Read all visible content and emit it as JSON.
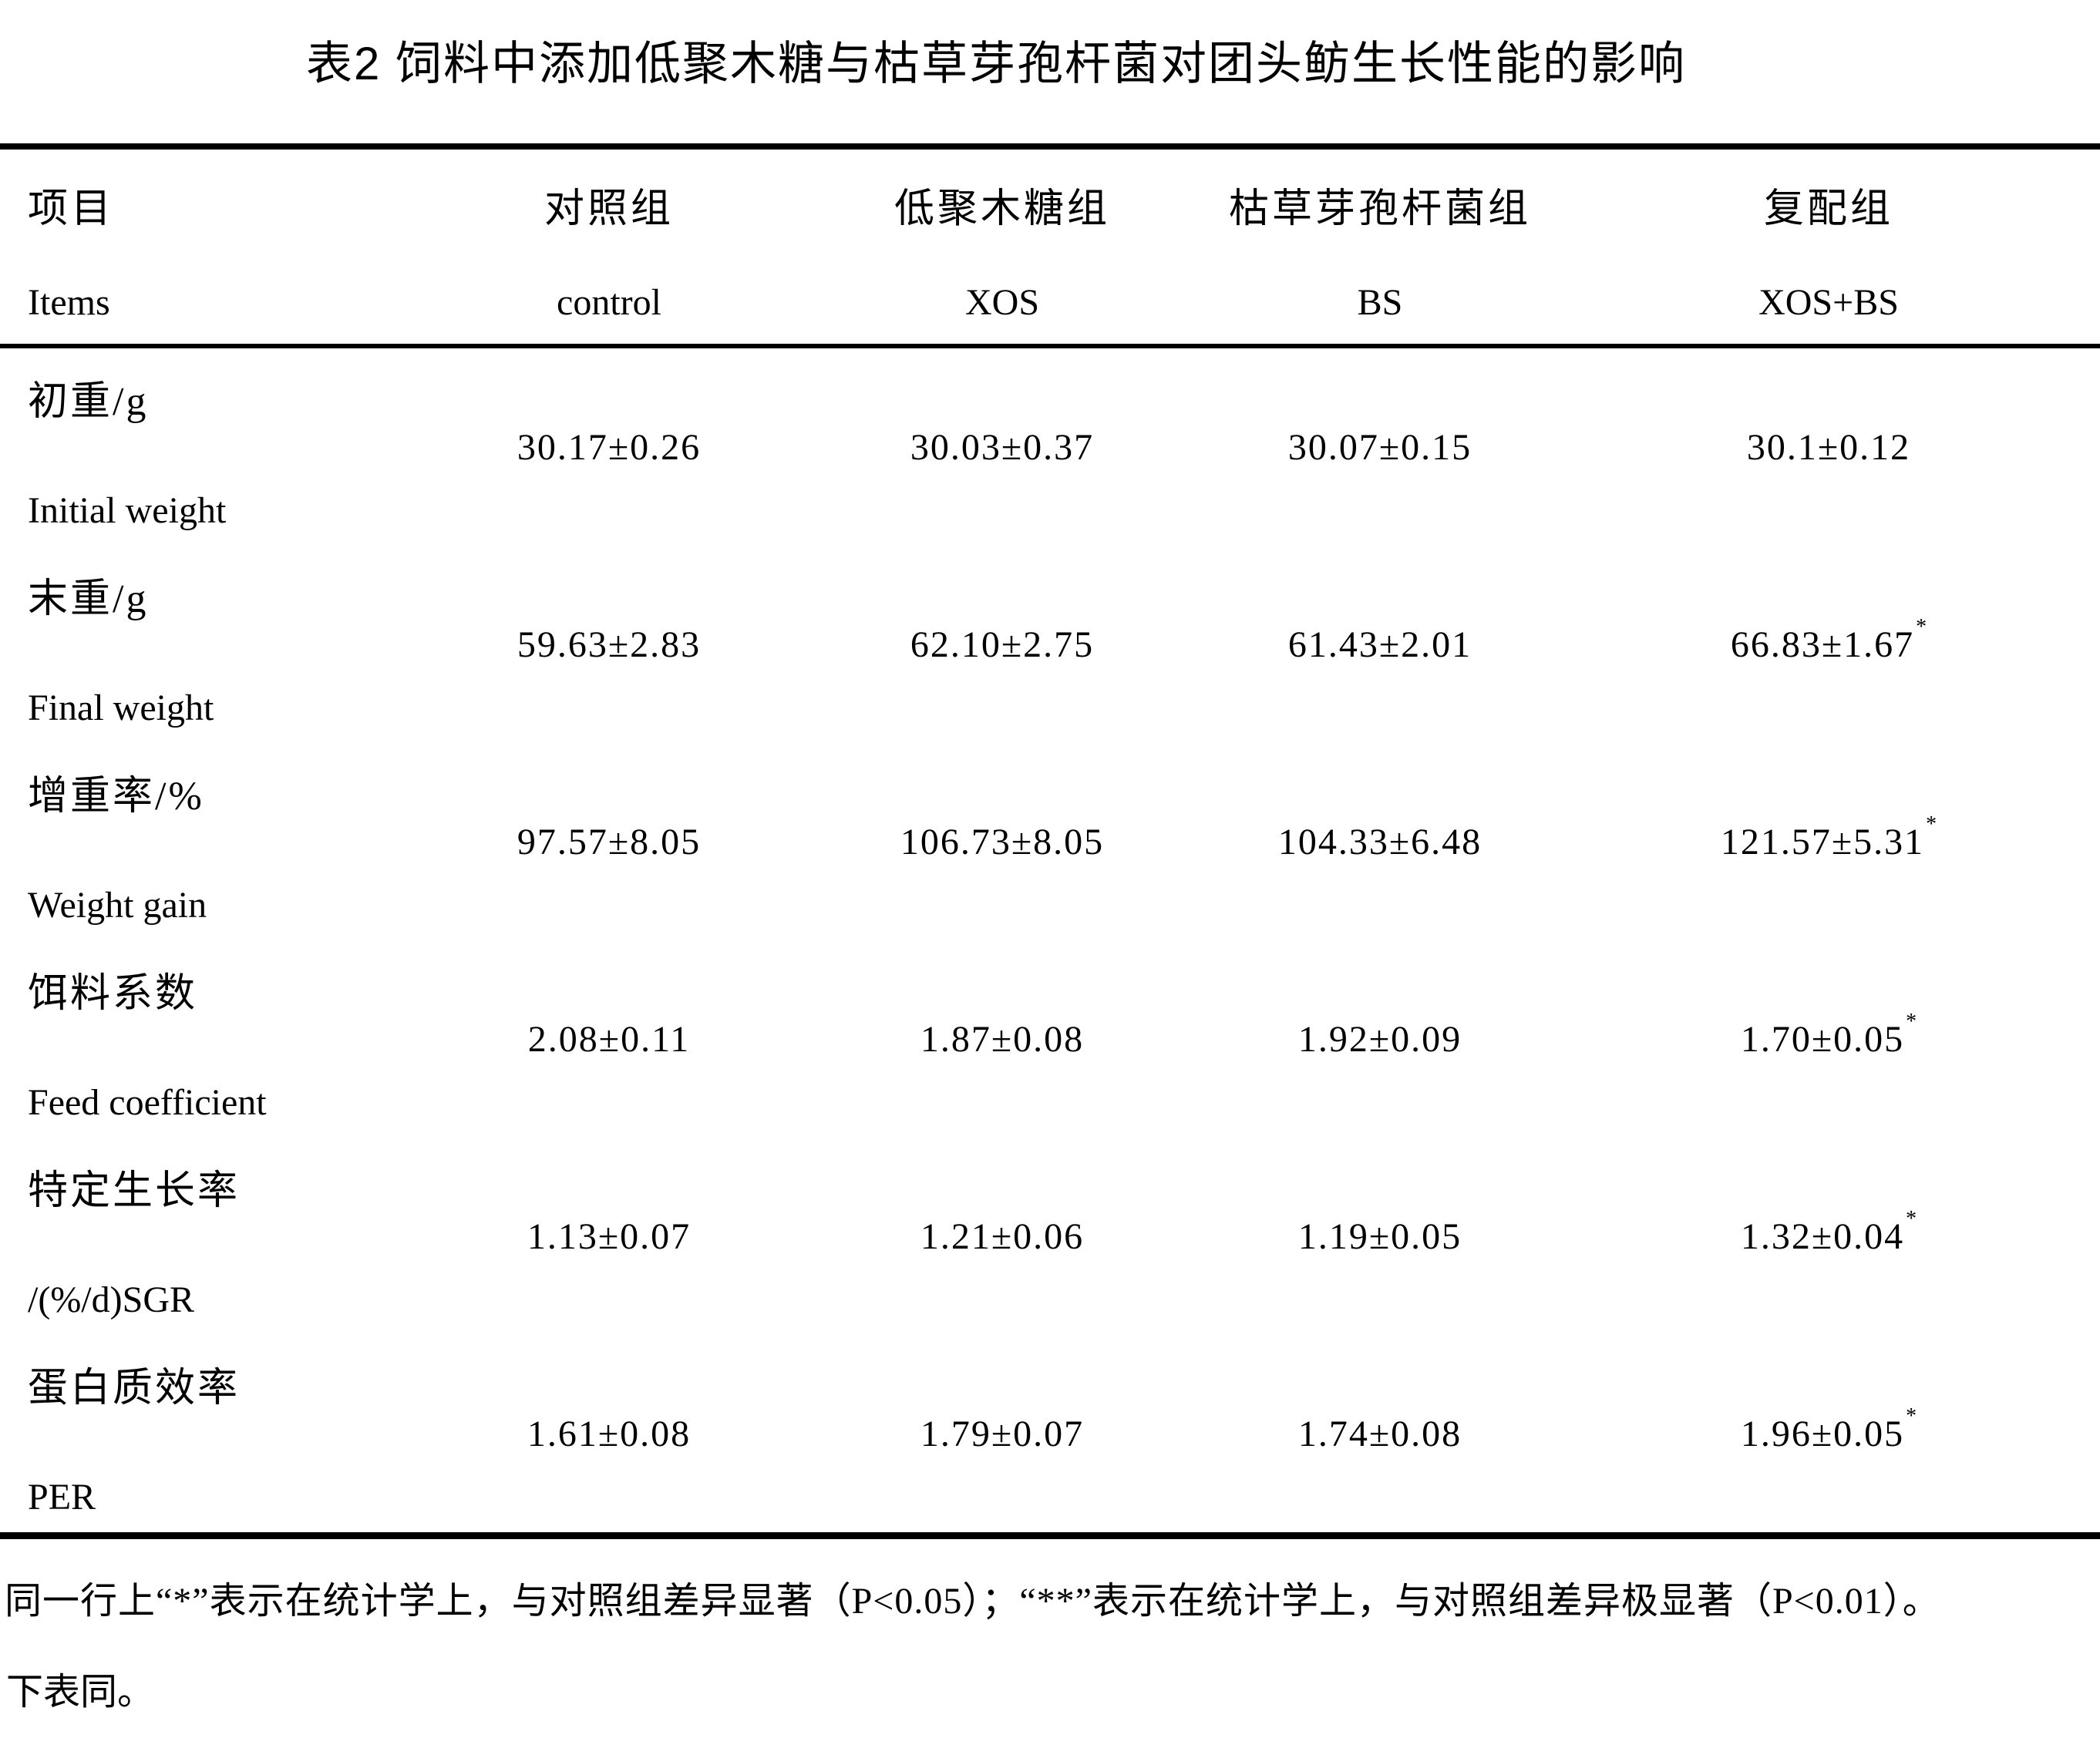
{
  "colors": {
    "ink": "#000000",
    "background": "#ffffff"
  },
  "title": "表2 饲料中添加低聚木糖与枯草芽孢杆菌对团头鲂生长性能的影响",
  "table": {
    "columns": [
      {
        "zh": "项目",
        "en": "Items"
      },
      {
        "zh": "对照组",
        "en": "control"
      },
      {
        "zh": "低聚木糖组",
        "en": "XOS"
      },
      {
        "zh": "枯草芽孢杆菌组",
        "en": "BS"
      },
      {
        "zh": "复配组",
        "en": "XOS+BS"
      }
    ],
    "rows": [
      {
        "zh": "初重/g",
        "en": "Initial weight",
        "control": "30.17±0.26",
        "xos": "30.03±0.37",
        "bs": "30.07±0.15",
        "xos_bs": "30.1±0.12",
        "xos_bs_sup": ""
      },
      {
        "zh": "末重/g",
        "en": "Final weight",
        "control": "59.63±2.83",
        "xos": "62.10±2.75",
        "bs": "61.43±2.01",
        "xos_bs": "66.83±1.67",
        "xos_bs_sup": "*"
      },
      {
        "zh": "增重率/%",
        "en": "Weight gain",
        "control": "97.57±8.05",
        "xos": "106.73±8.05",
        "bs": "104.33±6.48",
        "xos_bs": "121.57±5.31",
        "xos_bs_sup": "*"
      },
      {
        "zh": "饵料系数",
        "en": "Feed coefficient",
        "control": "2.08±0.11",
        "xos": "1.87±0.08",
        "bs": "1.92±0.09",
        "xos_bs": "1.70±0.05",
        "xos_bs_sup": "*"
      },
      {
        "zh": "特定生长率",
        "en": "/(%/d)SGR",
        "control": "1.13±0.07",
        "xos": "1.21±0.06",
        "bs": "1.19±0.05",
        "xos_bs": "1.32±0.04",
        "xos_bs_sup": "*"
      },
      {
        "zh": "蛋白质效率",
        "en": "PER",
        "control": "1.61±0.08",
        "xos": "1.79±0.07",
        "bs": "1.74±0.08",
        "xos_bs": "1.96±0.05",
        "xos_bs_sup": "*"
      }
    ]
  },
  "footnotes": [
    "同一行上“*”表示在统计学上，与对照组差异显著（P<0.05）；“**”表示在统计学上，与对照组差异极显著（P<0.01）。",
    "下表同。"
  ]
}
